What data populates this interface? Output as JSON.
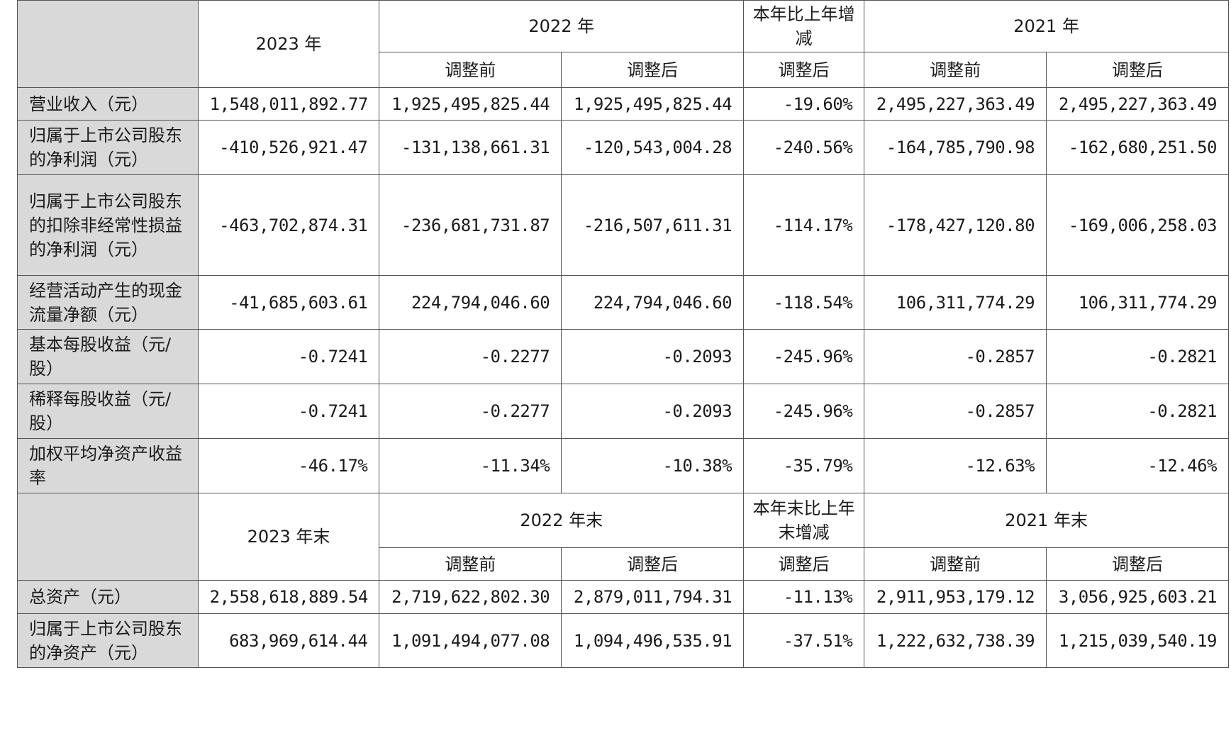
{
  "header1": {
    "year_a": "2023 年",
    "year_b": "2022 年",
    "change": "本年比上年增减",
    "year_c": "2021 年",
    "sub_before": "调整前",
    "sub_after": "调整后"
  },
  "rows1": [
    {
      "label": "营业收入（元）",
      "values": [
        "1,548,011,892.77",
        "1,925,495,825.44",
        "1,925,495,825.44",
        "-19.60%",
        "2,495,227,363.49",
        "2,495,227,363.49"
      ]
    },
    {
      "label": "归属于上市公司股东的净利润（元）",
      "values": [
        "-410,526,921.47",
        "-131,138,661.31",
        "-120,543,004.28",
        "-240.56%",
        "-164,785,790.98",
        "-162,680,251.50"
      ]
    },
    {
      "label": "归属于上市公司股东的扣除非经常性损益的净利润（元）",
      "values": [
        "-463,702,874.31",
        "-236,681,731.87",
        "-216,507,611.31",
        "-114.17%",
        "-178,427,120.80",
        "-169,006,258.03"
      ]
    },
    {
      "label": "经营活动产生的现金流量净额（元）",
      "values": [
        "-41,685,603.61",
        "224,794,046.60",
        "224,794,046.60",
        "-118.54%",
        "106,311,774.29",
        "106,311,774.29"
      ]
    },
    {
      "label": "基本每股收益（元/股）",
      "values": [
        "-0.7241",
        "-0.2277",
        "-0.2093",
        "-245.96%",
        "-0.2857",
        "-0.2821"
      ]
    },
    {
      "label": "稀释每股收益（元/股）",
      "values": [
        "-0.7241",
        "-0.2277",
        "-0.2093",
        "-245.96%",
        "-0.2857",
        "-0.2821"
      ]
    },
    {
      "label": "加权平均净资产收益率",
      "values": [
        "-46.17%",
        "-11.34%",
        "-10.38%",
        "-35.79%",
        "-12.63%",
        "-12.46%"
      ]
    }
  ],
  "header2": {
    "year_a": "2023 年末",
    "year_b": "2022 年末",
    "change": "本年末比上年末增减",
    "year_c": "2021 年末",
    "sub_before": "调整前",
    "sub_after": "调整后"
  },
  "rows2": [
    {
      "label": "总资产（元）",
      "values": [
        "2,558,618,889.54",
        "2,719,622,802.30",
        "2,879,011,794.31",
        "-11.13%",
        "2,911,953,179.12",
        "3,056,925,603.21"
      ]
    },
    {
      "label": "归属于上市公司股东的净资产（元）",
      "values": [
        "683,969,614.44",
        "1,091,494,077.08",
        "1,094,496,535.91",
        "-37.51%",
        "1,222,632,738.39",
        "1,215,039,540.19"
      ]
    }
  ]
}
